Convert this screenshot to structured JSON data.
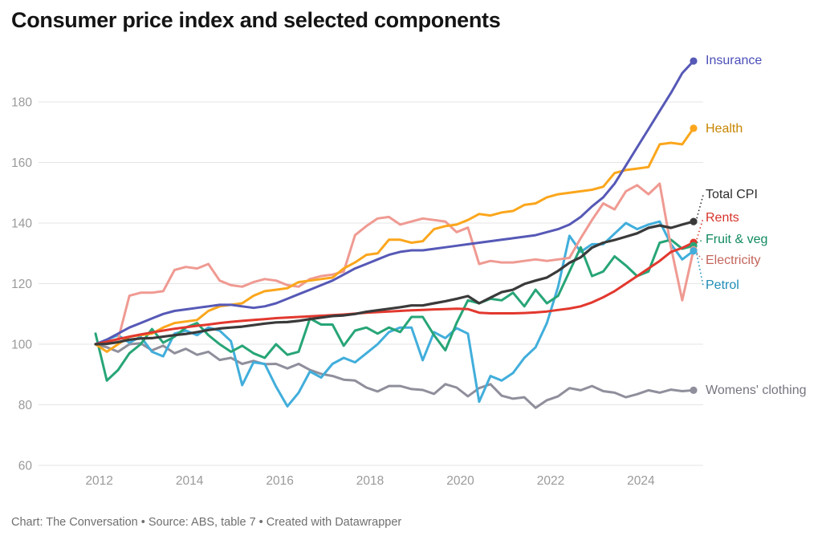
{
  "title": "Consumer price index and selected components",
  "footer": "Chart: The Conversation • Source: ABS, table 7 • Created with Datawrapper",
  "chart_data": {
    "type": "line",
    "title": "Consumer price index and selected components",
    "xlabel": "",
    "ylabel": "",
    "x_unit": "quarterly, 2011-Q4 to 2025-Q1, index base = 100",
    "x_tick_labels": [
      "2012",
      "2014",
      "2016",
      "2018",
      "2020",
      "2022",
      "2024"
    ],
    "y_ticks": [
      60,
      80,
      100,
      120,
      140,
      160,
      180
    ],
    "ylim": [
      60,
      197
    ],
    "grid": "horizontal",
    "legend_position": "right-edge-direct-labels",
    "grid_color": "#e5e5e5",
    "tick_color": "#9a9a9a",
    "series": [
      {
        "id": "insurance",
        "label": "Insurance",
        "line_color": "#5659b6",
        "label_color": "#4a4eb8",
        "values": [
          100,
          101.5,
          103.5,
          105.5,
          107,
          108.5,
          110,
          111,
          111.5,
          112,
          112.5,
          113,
          113,
          112.5,
          112,
          112.5,
          113.5,
          115,
          116.5,
          118,
          119.5,
          121,
          123,
          125,
          126.5,
          128,
          129.5,
          130.5,
          131,
          131,
          131.5,
          132,
          132.5,
          133,
          133.5,
          134,
          134.5,
          135,
          135.5,
          136,
          137,
          138,
          139.5,
          142,
          145.5,
          148.5,
          153,
          159,
          165,
          171,
          177,
          183,
          189.5,
          193.5
        ]
      },
      {
        "id": "health",
        "label": "Health",
        "line_color": "#fba61c",
        "label_color": "#c68400",
        "values": [
          100,
          97.5,
          100,
          102.5,
          103,
          103.5,
          105.5,
          107,
          107.5,
          108,
          111,
          112.5,
          113,
          113.5,
          116,
          117.5,
          118,
          118.5,
          120.5,
          121,
          121.5,
          122,
          125,
          127,
          129.5,
          130,
          134.5,
          134.5,
          133.5,
          134,
          138,
          139,
          139.5,
          141,
          143,
          142.5,
          143.5,
          144,
          146,
          146.5,
          148.5,
          149.5,
          150,
          150.5,
          151,
          152,
          156.5,
          157.5,
          158,
          158.5,
          166,
          166.5,
          166,
          171.3
        ]
      },
      {
        "id": "total-cpi",
        "label": "Total CPI",
        "line_color": "#3a3a3a",
        "label_color": "#2e2e2e",
        "values": [
          100,
          100.1,
          100.7,
          101.5,
          101.9,
          102,
          102.5,
          103,
          103.4,
          104,
          104.7,
          105.2,
          105.5,
          105.8,
          106.3,
          106.8,
          107.2,
          107.3,
          107.7,
          108.3,
          108.8,
          109.3,
          109.5,
          110,
          110.7,
          111.2,
          111.7,
          112.2,
          112.8,
          112.8,
          113.5,
          114.2,
          115,
          115.9,
          113.5,
          115.4,
          117.2,
          118,
          119.9,
          121,
          122,
          124.2,
          126.9,
          128.7,
          131.9,
          133.5,
          134.4,
          135.5,
          136.6,
          138.4,
          139.2,
          138.4,
          139.5,
          140.5
        ]
      },
      {
        "id": "rents",
        "label": "Rents",
        "line_color": "#e2382e",
        "label_color": "#d6342a",
        "values": [
          100,
          100.8,
          101.7,
          102.5,
          103.2,
          103.9,
          104.5,
          105.1,
          105.6,
          106.1,
          106.5,
          107,
          107.4,
          107.7,
          108,
          108.3,
          108.6,
          108.8,
          109,
          109.2,
          109.4,
          109.6,
          109.8,
          110.1,
          110.4,
          110.6,
          110.8,
          111,
          111.2,
          111.3,
          111.5,
          111.6,
          111.7,
          111.6,
          110.4,
          110.2,
          110.2,
          110.2,
          110.3,
          110.5,
          110.8,
          111.3,
          111.8,
          112.5,
          113.8,
          115.5,
          117.5,
          120,
          122.5,
          125,
          127.5,
          130.5,
          131.8,
          133.6
        ]
      },
      {
        "id": "fruit-veg",
        "label": "Fruit & veg",
        "line_color": "#27a577",
        "label_color": "#108a5e",
        "values": [
          103.5,
          88,
          91.5,
          97,
          100,
          105,
          100.5,
          102.5,
          105.5,
          107,
          103,
          100,
          97.5,
          99.5,
          97,
          95.5,
          100,
          96.5,
          97.5,
          108.5,
          106.5,
          106.5,
          99.5,
          104.5,
          105.5,
          103.5,
          105.5,
          104,
          109,
          109,
          103,
          98,
          107,
          114.5,
          113.5,
          115,
          114.5,
          117,
          112.5,
          118,
          113.5,
          116,
          124,
          132,
          122.5,
          124,
          129,
          126,
          122.5,
          124,
          133.5,
          134.5,
          131.5,
          132.5
        ]
      },
      {
        "id": "electricity",
        "label": "Electricity",
        "line_color": "#ef9a92",
        "label_color": "#c3655c",
        "values": [
          100,
          101,
          101.5,
          116,
          117,
          117,
          117.5,
          124.5,
          125.5,
          125,
          126.5,
          121,
          119.5,
          119,
          120.5,
          121.5,
          121,
          119.5,
          119,
          121.5,
          122.5,
          123,
          124,
          136,
          139,
          141.5,
          142,
          139.5,
          140.5,
          141.5,
          141,
          140.5,
          137,
          138.5,
          126.5,
          127.5,
          127,
          127,
          127.5,
          128,
          127.5,
          128,
          128.5,
          135,
          141,
          146.5,
          144.5,
          150.5,
          152.5,
          149.5,
          153,
          132,
          114.5,
          131.2
        ]
      },
      {
        "id": "petrol",
        "label": "Petrol",
        "line_color": "#41aedb",
        "label_color": "#1d8cb5",
        "values": [
          100,
          101.5,
          103,
          100.5,
          102.5,
          97.5,
          96,
          103.5,
          104.5,
          103,
          105.5,
          104.5,
          101,
          86.5,
          94,
          93.5,
          86,
          79.5,
          84,
          91,
          89,
          93.5,
          95.5,
          94,
          97,
          100,
          104,
          105.5,
          105.5,
          94.7,
          104,
          102,
          105.3,
          103.5,
          81,
          89.5,
          88,
          90.5,
          95.5,
          99,
          107,
          119,
          135.8,
          130.5,
          133,
          133,
          136.5,
          140,
          138,
          139.5,
          140.5,
          133,
          128,
          130.8
        ]
      },
      {
        "id": "womens-clothing",
        "label": "Womens' clothing",
        "line_color": "#8f8f9c",
        "label_color": "#75757f",
        "values": [
          100,
          99,
          97.5,
          100,
          100.3,
          98,
          99.5,
          97,
          98.5,
          96.5,
          97.5,
          94.8,
          95.5,
          93.5,
          94.5,
          93.4,
          93.5,
          92,
          93.5,
          91.5,
          90.2,
          89.5,
          88.3,
          88,
          85.7,
          84.4,
          86.2,
          86.2,
          85.2,
          84.9,
          83.6,
          86.8,
          85.7,
          82.8,
          85.5,
          86.8,
          83,
          82,
          82.5,
          79,
          81.5,
          82.8,
          85.5,
          84.8,
          86.2,
          84.5,
          84,
          82.5,
          83.5,
          84.8,
          84,
          85,
          84.5,
          84.8
        ]
      }
    ]
  }
}
